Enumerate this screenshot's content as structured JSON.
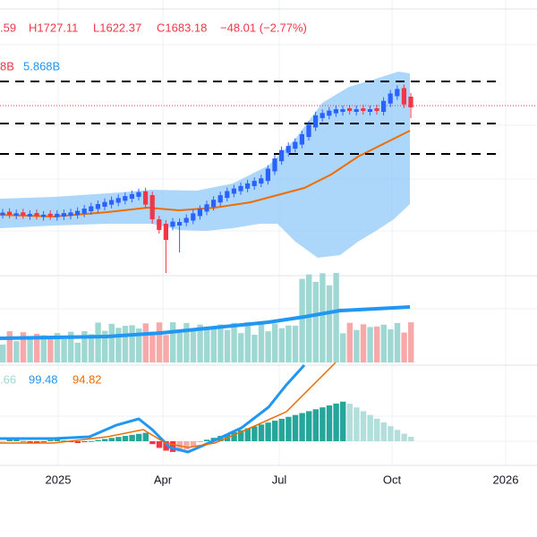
{
  "header": {
    "open_tail": ".59",
    "high": "H1727.11",
    "low": "L1622.37",
    "close": "C1683.18",
    "change": "−48.01 (−2.77%)"
  },
  "volume_legend": {
    "first": "8B",
    "second": "5.868B"
  },
  "macd_legend": {
    "first": ".66",
    "second": "99.48",
    "third": "94.82"
  },
  "time_axis": [
    "2025",
    "Apr",
    "Jul",
    "Oct",
    "2026"
  ]
}
